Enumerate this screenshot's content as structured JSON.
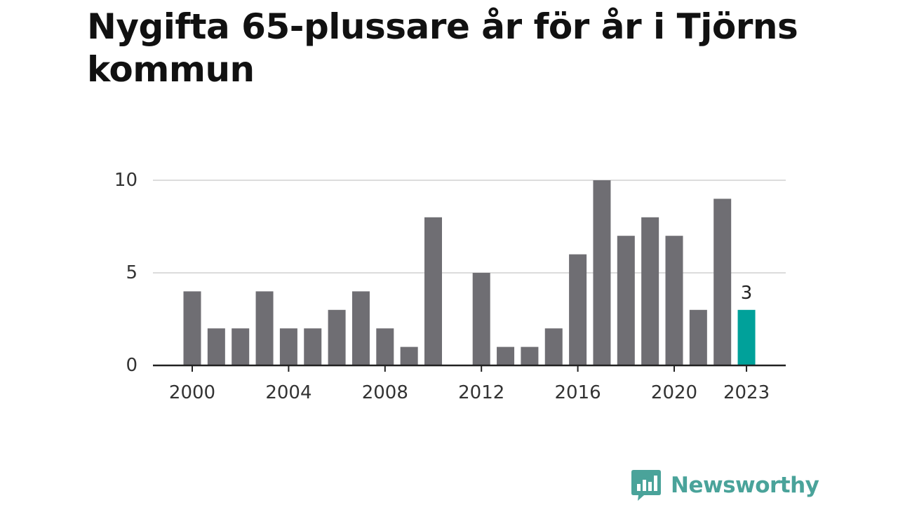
{
  "title": "Nygifta 65-plussare år för år i Tjörns kommun",
  "brand": {
    "name": "Newsworthy",
    "icon": "newsworthy-logo-icon"
  },
  "colors": {
    "bar": "#6f6e73",
    "highlight": "#00a19a",
    "grid": "#dcdcdc",
    "axis": "#222222",
    "text": "#333333",
    "brand": "#4aa39a"
  },
  "chart_data": {
    "type": "bar",
    "title": "Nygifta 65-plussare år för år i Tjörns kommun",
    "xlabel": "",
    "ylabel": "",
    "x": [
      2000,
      2001,
      2002,
      2003,
      2004,
      2005,
      2006,
      2007,
      2008,
      2009,
      2010,
      2011,
      2012,
      2013,
      2014,
      2015,
      2016,
      2017,
      2018,
      2019,
      2020,
      2021,
      2022,
      2023
    ],
    "values": [
      4,
      2,
      2,
      4,
      2,
      2,
      3,
      4,
      2,
      1,
      8,
      0,
      5,
      1,
      1,
      2,
      6,
      10,
      7,
      8,
      7,
      3,
      9,
      3
    ],
    "highlight": {
      "x": 2023,
      "value": 3,
      "label": "3"
    },
    "yticks": [
      0,
      5,
      10
    ],
    "ytick_labels": [
      "0",
      "5",
      "10"
    ],
    "xticks": [
      2000,
      2004,
      2008,
      2012,
      2016,
      2020,
      2023
    ],
    "xtick_labels": [
      "2000",
      "2004",
      "2008",
      "2012",
      "2016",
      "2020",
      "2023"
    ],
    "ylim": [
      0,
      10
    ],
    "grid": true,
    "legend": "none"
  }
}
